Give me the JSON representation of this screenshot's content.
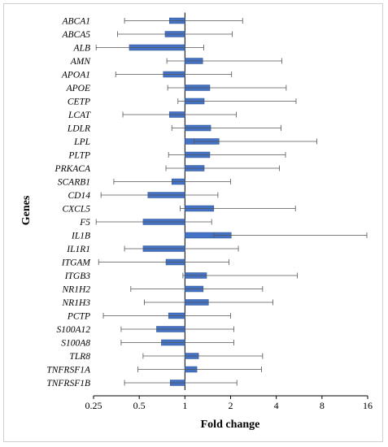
{
  "chart_data": {
    "type": "bar",
    "orientation": "horizontal",
    "scale": "log2",
    "xlabel": "Fold change",
    "ylabel": "Genes",
    "xticks": [
      "0.25",
      "0.5",
      "1",
      "2",
      "4",
      "8",
      "16"
    ],
    "xlim": [
      0.25,
      16
    ],
    "baseline": 1,
    "bar_color": "#4472c4",
    "categories": [
      "ABCA1",
      "ABCA5",
      "ALB",
      "AMN",
      "APOA1",
      "APOE",
      "CETP",
      "LCAT",
      "LDLR",
      "LPL",
      "PLTP",
      "PRKACA",
      "SCARB1",
      "CD14",
      "CXCL5",
      "F5",
      "IL1B",
      "IL1R1",
      "ITGAM",
      "ITGB3",
      "NR1H2",
      "NR1H3",
      "PCTP",
      "S100A12",
      "S100A8",
      "TLR8",
      "TNFRSF1A",
      "TNFRSF1B"
    ],
    "values": [
      0.79,
      0.74,
      0.43,
      1.31,
      0.72,
      1.46,
      1.34,
      0.79,
      1.48,
      1.68,
      1.46,
      1.34,
      0.82,
      0.57,
      1.55,
      0.53,
      2.02,
      0.53,
      0.75,
      1.39,
      1.32,
      1.43,
      0.78,
      0.65,
      0.7,
      1.23,
      1.2,
      0.8
    ],
    "error_low": [
      0.4,
      0.36,
      0.26,
      0.76,
      0.35,
      0.77,
      0.9,
      0.39,
      0.82,
      1.15,
      0.78,
      0.75,
      0.34,
      0.28,
      0.93,
      0.26,
      1.55,
      0.4,
      0.27,
      0.97,
      0.44,
      0.54,
      0.29,
      0.38,
      0.38,
      0.53,
      0.49,
      0.4
    ],
    "error_high": [
      2.4,
      2.05,
      1.33,
      4.35,
      2.03,
      4.65,
      5.4,
      2.18,
      4.3,
      7.4,
      4.6,
      4.2,
      2.0,
      1.65,
      5.35,
      1.5,
      15.8,
      2.25,
      1.95,
      5.5,
      3.25,
      3.8,
      2.0,
      2.1,
      2.1,
      3.25,
      3.2,
      2.2
    ]
  }
}
